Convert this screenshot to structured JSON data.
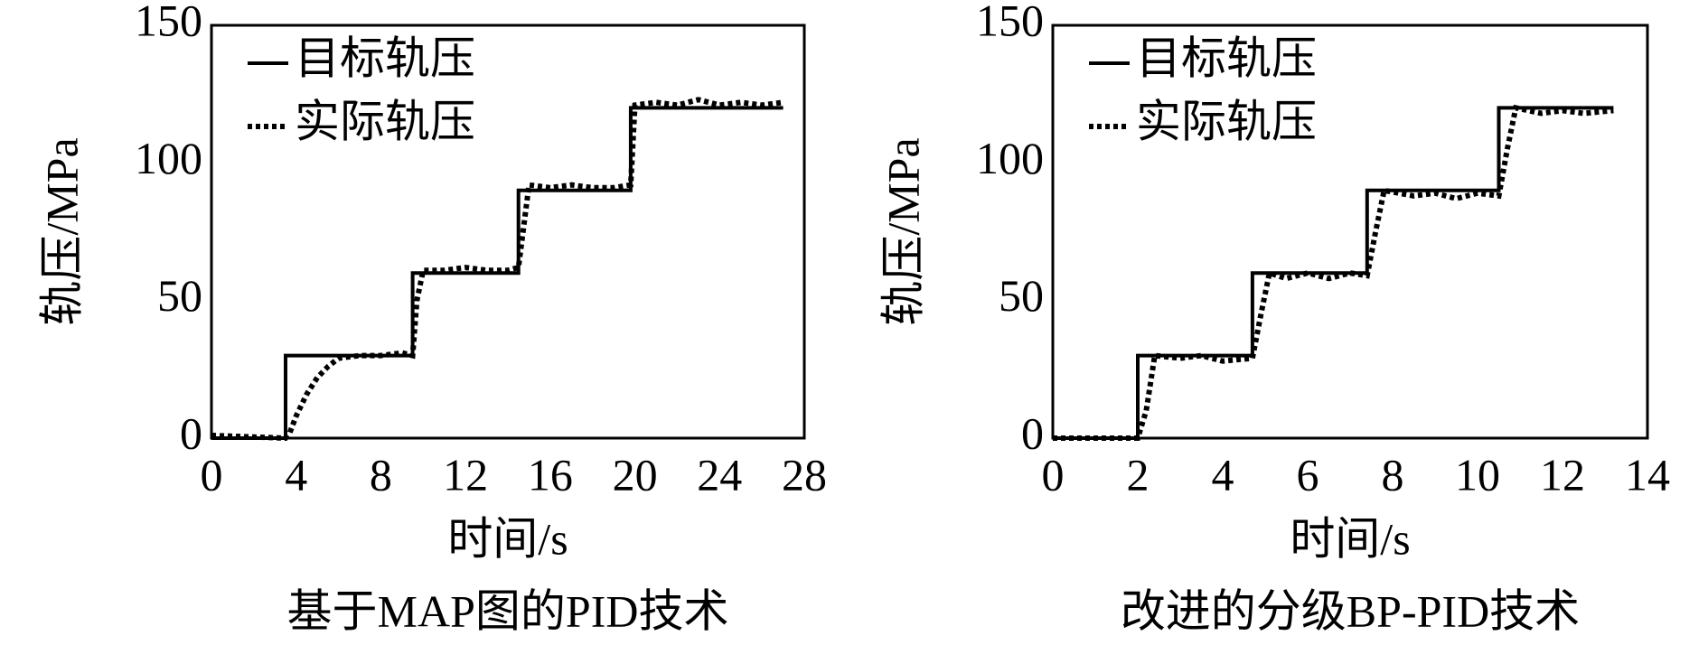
{
  "chart_data": [
    {
      "type": "line",
      "title": "基于MAP图的PID技术",
      "xlabel": "时间/s",
      "ylabel": "轨压/MPa",
      "xlim": [
        0,
        28
      ],
      "xticks": [
        0,
        4,
        8,
        12,
        16,
        20,
        24,
        28
      ],
      "ylim": [
        0,
        150
      ],
      "yticks": [
        0,
        50,
        100,
        150
      ],
      "legend": "upper left",
      "series": [
        {
          "name": "目标轨压",
          "color": "#000000",
          "line_style": "solid",
          "x": [
            0,
            3.5,
            3.5,
            9.5,
            9.5,
            14.5,
            14.5,
            19.8,
            19.8,
            27
          ],
          "values": [
            0,
            0,
            30,
            30,
            60,
            60,
            90,
            90,
            120,
            120
          ]
        },
        {
          "name": "实际轨压",
          "color": "#000000",
          "line_style": "dotted",
          "x": [
            0,
            3.5,
            3.7,
            4,
            4.5,
            5,
            5.5,
            6,
            7,
            8,
            9,
            9.5,
            9.7,
            10,
            11,
            12,
            13,
            14,
            14.5,
            14.8,
            15,
            16,
            17,
            18,
            19,
            19.8,
            20,
            21,
            22,
            23,
            24,
            25,
            26,
            27
          ],
          "values": [
            1,
            0,
            2,
            8,
            16,
            22,
            26,
            29,
            30,
            30,
            31,
            30,
            50,
            61,
            61,
            62,
            61,
            61,
            62,
            80,
            92,
            91,
            92,
            91,
            91,
            92,
            121,
            122,
            121,
            123,
            121,
            122,
            121,
            122
          ]
        }
      ]
    },
    {
      "type": "line",
      "title": "改进的分级BP-PID技术",
      "xlabel": "时间/s",
      "ylabel": "轨压/MPa",
      "xlim": [
        0,
        14
      ],
      "xticks": [
        0,
        2,
        4,
        6,
        8,
        10,
        12,
        14
      ],
      "ylim": [
        0,
        150
      ],
      "yticks": [
        0,
        50,
        100,
        150
      ],
      "legend": "upper left",
      "series": [
        {
          "name": "目标轨压",
          "color": "#000000",
          "line_style": "solid",
          "x": [
            0,
            2,
            2,
            4.7,
            4.7,
            7.4,
            7.4,
            10.5,
            10.5,
            13.2
          ],
          "values": [
            0,
            0,
            30,
            30,
            60,
            60,
            90,
            90,
            120,
            120
          ]
        },
        {
          "name": "实际轨压",
          "color": "#000000",
          "line_style": "dotted",
          "x": [
            0,
            2,
            2.2,
            2.4,
            3,
            3.5,
            4,
            4.7,
            4.9,
            5.1,
            5.5,
            6,
            6.5,
            7,
            7.4,
            7.6,
            7.8,
            8.5,
            9,
            9.5,
            10,
            10.5,
            10.7,
            10.9,
            11.5,
            12,
            12.5,
            13.2
          ],
          "values": [
            0,
            0,
            10,
            30,
            29,
            30,
            28,
            29,
            45,
            60,
            58,
            60,
            58,
            60,
            59,
            75,
            90,
            88,
            89,
            87,
            89,
            88,
            105,
            120,
            118,
            119,
            118,
            119
          ]
        }
      ]
    }
  ]
}
